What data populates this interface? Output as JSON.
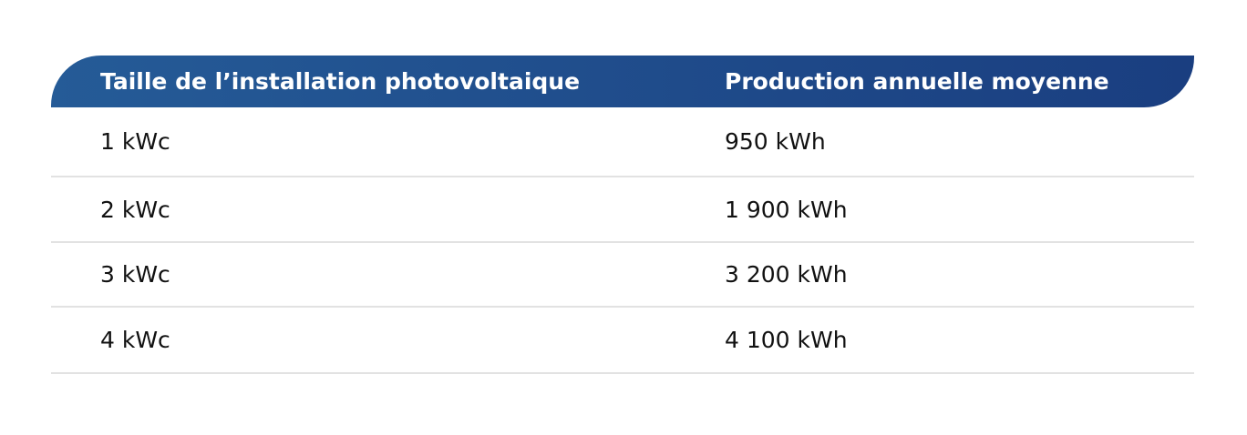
{
  "table": {
    "headers": [
      "Taille de l’installation photovoltaique",
      "Production annuelle moyenne"
    ],
    "rows": [
      [
        "1 kWc",
        "950 kWh"
      ],
      [
        "2 kWc",
        "1 900 kWh"
      ],
      [
        "3 kWc",
        "3 200 kWh"
      ],
      [
        "4 kWc",
        "4 100 kWh"
      ]
    ],
    "header_gradient": [
      "#255b97",
      "#1a3e80"
    ]
  }
}
